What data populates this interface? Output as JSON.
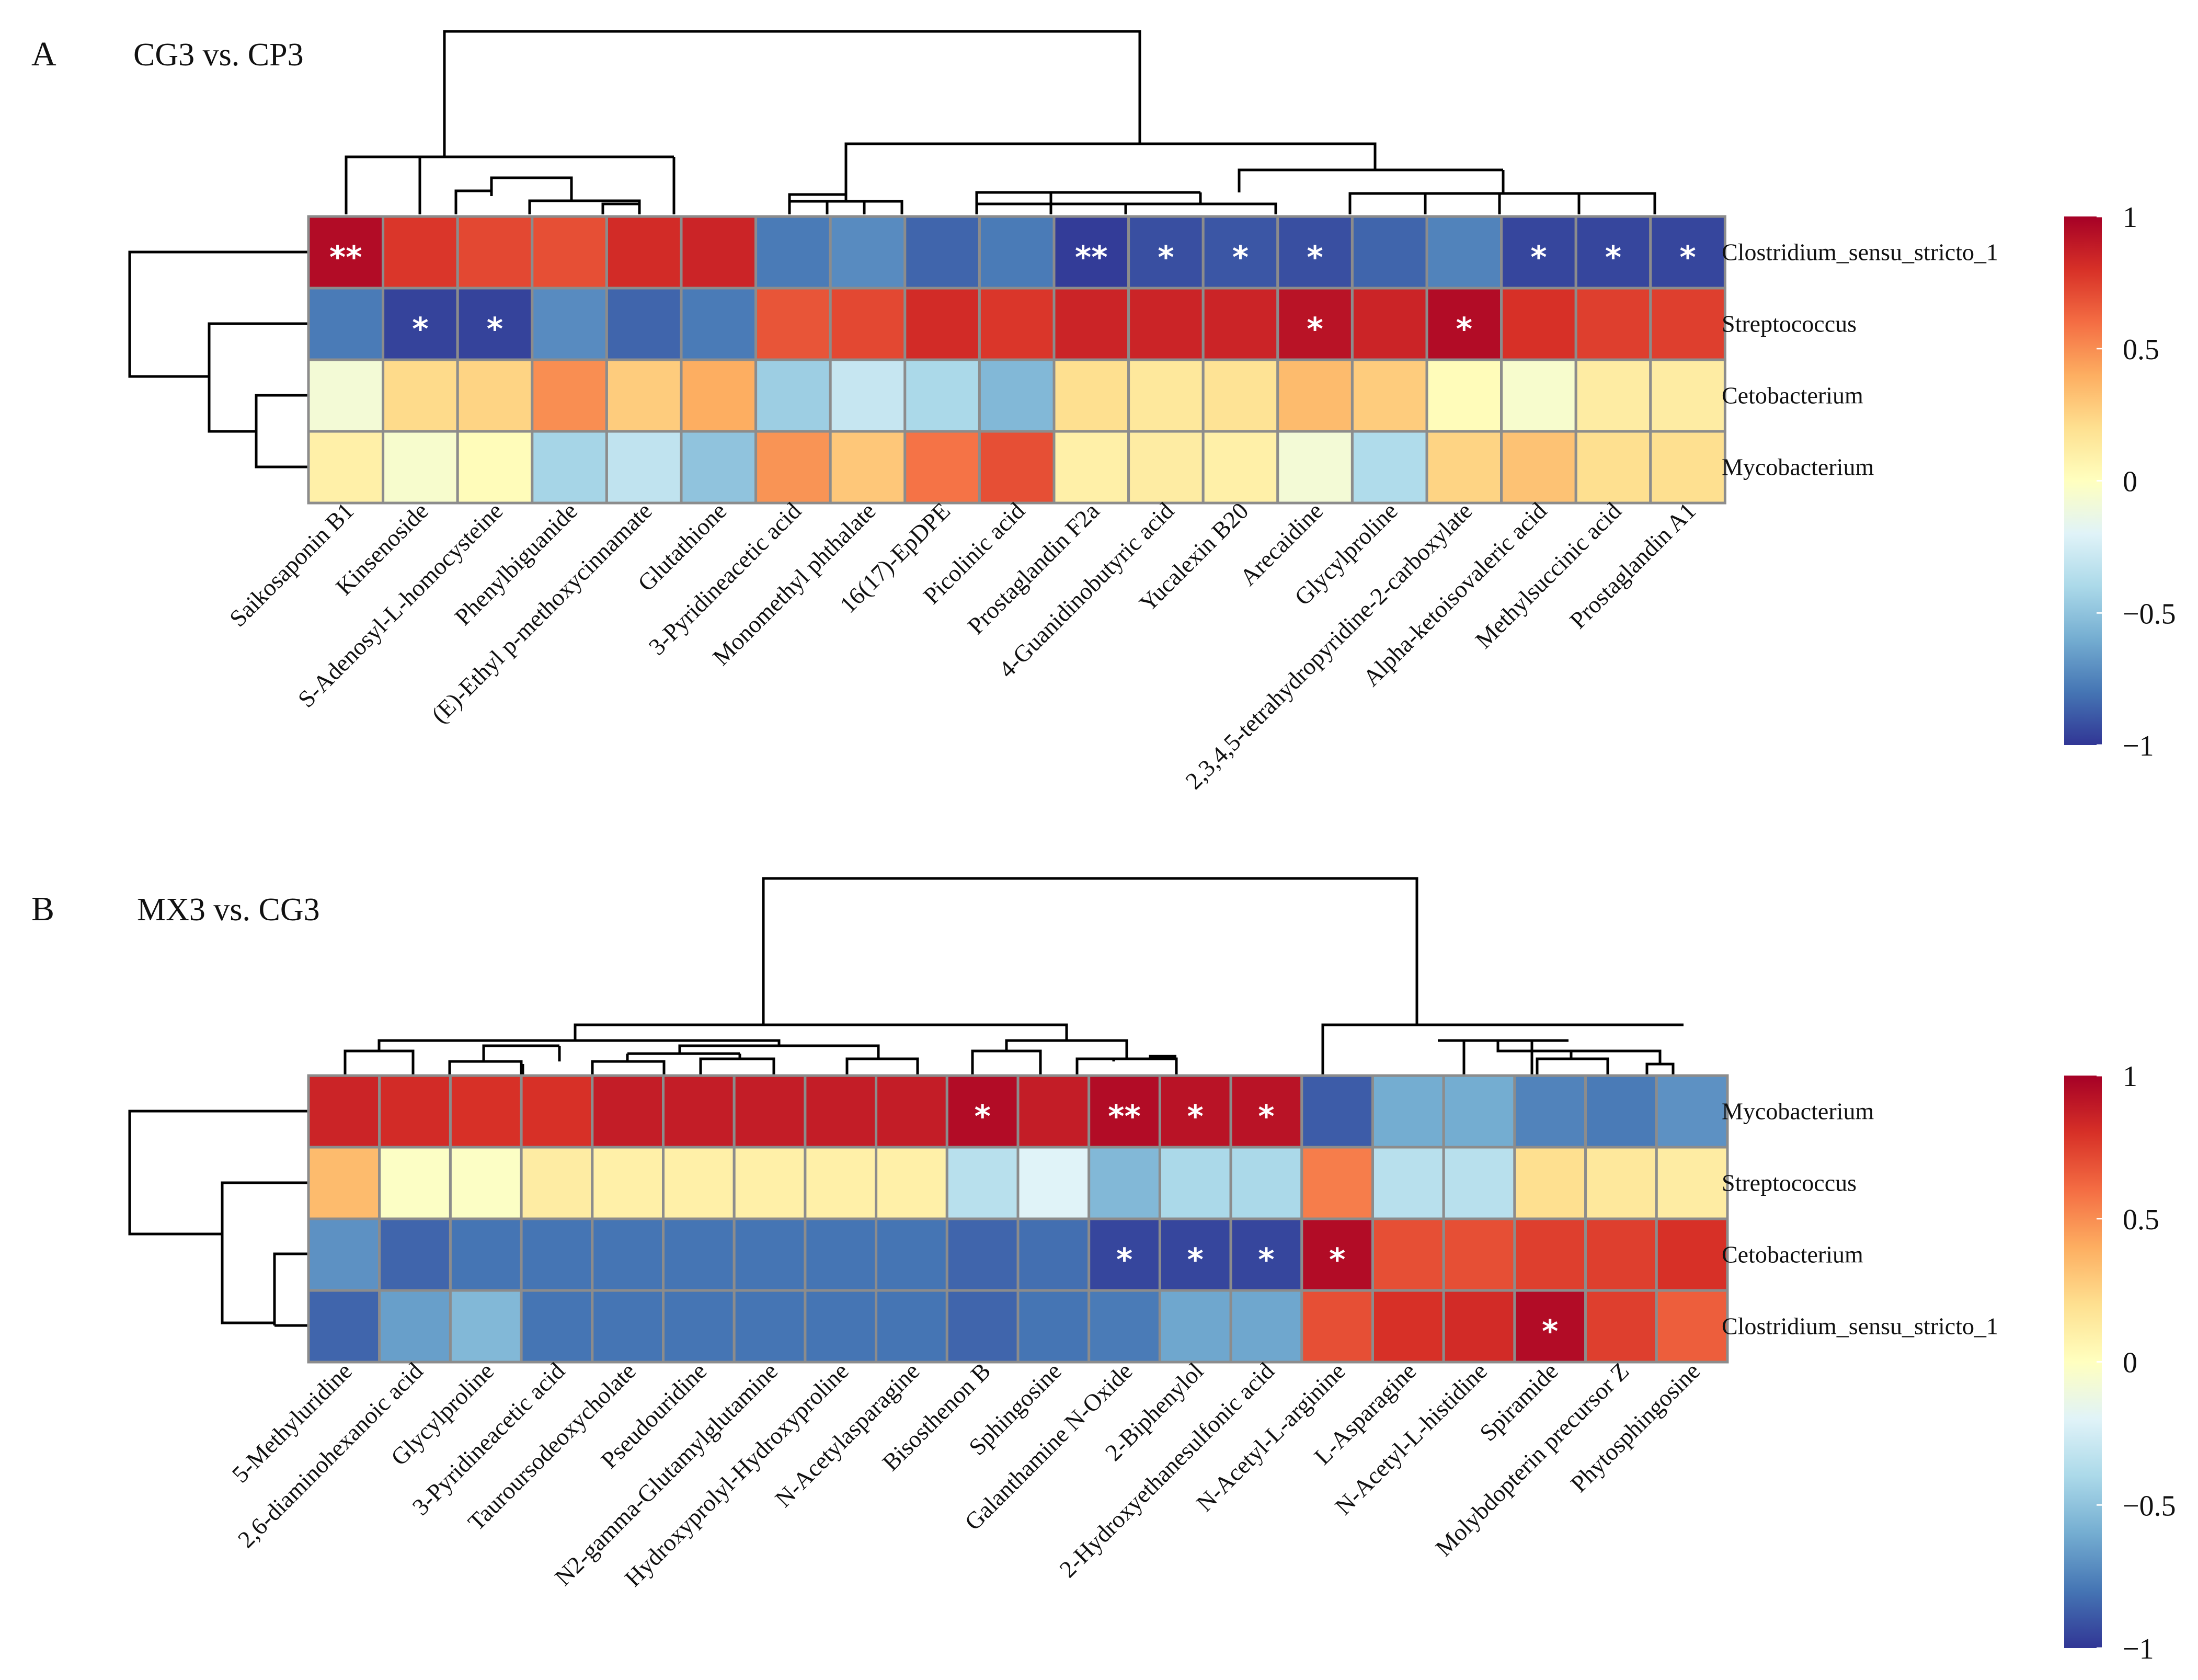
{
  "colors": {
    "scale": [
      "#313695",
      "#4575b4",
      "#74add1",
      "#abd9e9",
      "#e0f3f8",
      "#ffffbf",
      "#fee090",
      "#fdae61",
      "#f46d43",
      "#d73027",
      "#a50026"
    ]
  },
  "chart_data": [
    {
      "type": "heatmap",
      "panel": "A",
      "title": "CG3 vs. CP3",
      "rows": [
        "Clostridium_sensu_stricto_1",
        "Streptococcus",
        "Cetobacterium",
        "Mycobacterium"
      ],
      "columns": [
        "Saikosaponin B1",
        "Kinsenoside",
        "S-Adenosyl-L-homocysteine",
        "Phenylbiguanide",
        "(E)-Ethyl p-methoxycinnamate",
        "Glutathione",
        "3-Pyridineacetic acid",
        "Monomethyl phthalate",
        "16(17)-EpDPE",
        "Picolinic acid",
        "Prostaglandin F2a",
        "4-Guanidinobutyric acid",
        "Yucalexin B20",
        "Arecaidine",
        "Glycylproline",
        "2,3,4,5-tetrahydropyridine-2-carboxylate",
        "Alpha-ketoisovaleric acid",
        "Methylsuccinic acid",
        "Prostaglandin A1"
      ],
      "values": [
        [
          0.95,
          0.78,
          0.72,
          0.7,
          0.82,
          0.85,
          -0.78,
          -0.72,
          -0.85,
          -0.78,
          -0.98,
          -0.92,
          -0.9,
          -0.92,
          -0.85,
          -0.75,
          -0.95,
          -0.95,
          -0.95
        ],
        [
          -0.78,
          -0.96,
          -0.96,
          -0.72,
          -0.85,
          -0.78,
          0.68,
          0.72,
          0.82,
          0.78,
          0.85,
          0.85,
          0.85,
          0.92,
          0.85,
          0.95,
          0.8,
          0.75,
          0.75
        ],
        [
          -0.08,
          0.22,
          0.25,
          0.5,
          0.28,
          0.4,
          -0.45,
          -0.3,
          -0.4,
          -0.55,
          0.2,
          0.15,
          0.18,
          0.35,
          0.28,
          0.02,
          -0.05,
          0.12,
          0.12
        ],
        [
          0.1,
          -0.05,
          0.02,
          -0.42,
          -0.32,
          -0.5,
          0.48,
          0.3,
          0.58,
          0.7,
          0.1,
          0.12,
          0.1,
          -0.08,
          -0.38,
          0.25,
          0.32,
          0.2,
          0.2
        ]
      ],
      "significance": [
        [
          "**",
          "",
          "",
          "",
          "",
          "",
          "",
          "",
          "",
          "",
          "**",
          "*",
          "*",
          "*",
          "",
          "",
          "*",
          "*",
          "*"
        ],
        [
          "",
          "*",
          "*",
          "",
          "",
          "",
          "",
          "",
          "",
          "",
          "",
          "",
          "",
          "*",
          "",
          "*",
          "",
          "",
          ""
        ],
        [
          "",
          "",
          "",
          "",
          "",
          "",
          "",
          "",
          "",
          "",
          "",
          "",
          "",
          "",
          "",
          "",
          "",
          "",
          ""
        ],
        [
          "",
          "",
          "",
          "",
          "",
          "",
          "",
          "",
          "",
          "",
          "",
          "",
          "",
          "",
          "",
          "",
          "",
          "",
          ""
        ]
      ],
      "colorbar": {
        "min": -1,
        "max": 1,
        "ticks": [
          "1",
          "0.5",
          "0",
          "−0.5",
          "−1"
        ]
      }
    },
    {
      "type": "heatmap",
      "panel": "B",
      "title": "MX3 vs. CG3",
      "rows": [
        "Mycobacterium",
        "Streptococcus",
        "Cetobacterium",
        "Clostridium_sensu_stricto_1"
      ],
      "columns": [
        "5-Methyluridine",
        "2,6-diaminohexanoic acid",
        "Glycylproline",
        "3-Pyridineacetic acid",
        "Tauroursodeoxycholate",
        "Pseudouridine",
        "N2-gamma-Glutamylglutamine",
        "Hydroxyprolyl-Hydroxyproline",
        "N-Acetylasparagine",
        "Bisosthenon B",
        "Sphingosine",
        "Galanthamine N-Oxide",
        "2-Biphenylol",
        "2-Hydroxyethanesulfonic acid",
        "N-Acetyl-L-arginine",
        "L-Asparagine",
        "N-Acetyl-L-histidine",
        "Spiramide",
        "Molybdopterin precursor Z",
        "Phytosphingosine"
      ],
      "values": [
        [
          0.85,
          0.82,
          0.8,
          0.8,
          0.88,
          0.88,
          0.88,
          0.88,
          0.88,
          0.95,
          0.88,
          0.95,
          0.92,
          0.92,
          -0.88,
          -0.6,
          -0.6,
          -0.75,
          -0.78,
          -0.7
        ],
        [
          0.35,
          -0.02,
          -0.02,
          0.12,
          0.1,
          0.1,
          0.1,
          0.1,
          0.1,
          -0.35,
          -0.2,
          -0.55,
          -0.4,
          -0.4,
          0.55,
          -0.35,
          -0.35,
          0.2,
          0.15,
          0.12
        ],
        [
          -0.7,
          -0.85,
          -0.8,
          -0.8,
          -0.8,
          -0.8,
          -0.8,
          -0.8,
          -0.8,
          -0.85,
          -0.82,
          -0.95,
          -0.95,
          -0.95,
          0.95,
          0.7,
          0.7,
          0.75,
          0.75,
          0.8
        ],
        [
          -0.85,
          -0.65,
          -0.55,
          -0.8,
          -0.8,
          -0.8,
          -0.8,
          -0.8,
          -0.8,
          -0.85,
          -0.8,
          -0.78,
          -0.62,
          -0.62,
          0.7,
          0.8,
          0.82,
          0.95,
          0.75,
          0.65
        ]
      ],
      "significance": [
        [
          "",
          "",
          "",
          "",
          "",
          "",
          "",
          "",
          "",
          "*",
          "",
          "**",
          "*",
          "*",
          "",
          "",
          "",
          "",
          "",
          ""
        ],
        [
          "",
          "",
          "",
          "",
          "",
          "",
          "",
          "",
          "",
          "",
          "",
          "",
          "",
          "",
          "",
          "",
          "",
          "",
          "",
          ""
        ],
        [
          "",
          "",
          "",
          "",
          "",
          "",
          "",
          "",
          "",
          "",
          "",
          "*",
          "*",
          "*",
          "*",
          "",
          "",
          "",
          "",
          ""
        ],
        [
          "",
          "",
          "",
          "",
          "",
          "",
          "",
          "",
          "",
          "",
          "",
          "",
          "",
          "",
          "",
          "",
          "",
          "*",
          "",
          ""
        ]
      ],
      "colorbar": {
        "min": -1,
        "max": 1,
        "ticks": [
          "1",
          "0.5",
          "0",
          "−0.5",
          "−1"
        ]
      }
    }
  ]
}
